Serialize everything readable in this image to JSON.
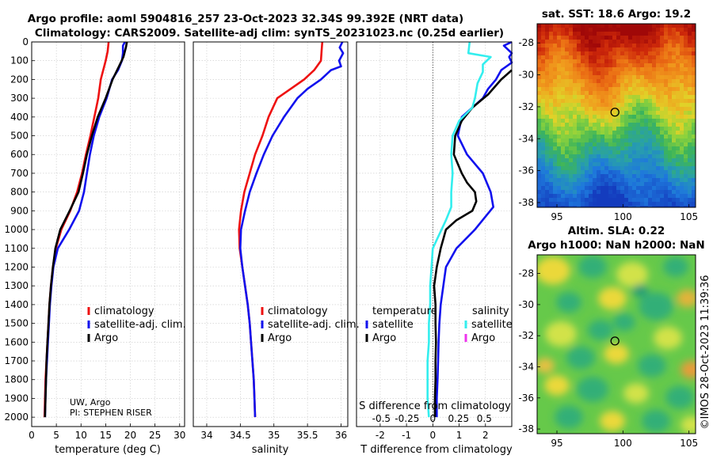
{
  "header": {
    "title_line1": "Argo profile: aoml 5904816_257 23-Oct-2023 32.34S 99.392E (NRT data)",
    "title_line2": "Climatology: CARS2009. Satellite-adj clim: synTS_20231023.nc (0.25d earlier)"
  },
  "credit": "©IMOS 28-Oct-2023 11:39:36",
  "colors": {
    "climatology": "#ee1111",
    "satellite_adj": "#1111ee",
    "argo": "#000000",
    "satellite_sal": "#33eeee",
    "argo_sal": "#ee33ee"
  },
  "chart_data": [
    {
      "type": "line",
      "id": "temperature",
      "xlabel": "temperature (deg C)",
      "ylabel": "",
      "xlim": [
        0,
        31
      ],
      "ylim": [
        0,
        2050
      ],
      "y_reversed": true,
      "xticks": [
        0,
        5,
        10,
        15,
        20,
        25,
        30
      ],
      "xtick_labels": [
        "0",
        "5",
        "10",
        "15",
        "20",
        "25",
        "30"
      ],
      "yticks": [
        0,
        100,
        200,
        300,
        400,
        500,
        600,
        700,
        800,
        900,
        1000,
        1100,
        1200,
        1300,
        1400,
        1500,
        1600,
        1700,
        1800,
        1900,
        2000
      ],
      "ytick_labels": [
        "0",
        "100",
        "200",
        "300",
        "400",
        "500",
        "600",
        "700",
        "800",
        "900",
        "1000",
        "1100",
        "1200",
        "1300",
        "1400",
        "1500",
        "1600",
        "1700",
        "1800",
        "1900",
        "2000"
      ],
      "grid": true,
      "legend": [
        "climatology",
        "satellite-adj. clim.",
        "Argo"
      ],
      "annotation_lines": [
        "UW, Argo",
        "PI: STEPHEN RISER"
      ],
      "series": [
        {
          "name": "climatology",
          "color_key": "climatology",
          "points": [
            [
              15.6,
              0
            ],
            [
              15.4,
              50
            ],
            [
              15,
              100
            ],
            [
              14.5,
              150
            ],
            [
              14,
              200
            ],
            [
              13.5,
              300
            ],
            [
              12.7,
              400
            ],
            [
              11.9,
              500
            ],
            [
              11,
              600
            ],
            [
              10.2,
              700
            ],
            [
              9.2,
              800
            ],
            [
              7.8,
              900
            ],
            [
              6,
              1000
            ],
            [
              4.9,
              1100
            ],
            [
              4.3,
              1200
            ],
            [
              3.9,
              1300
            ],
            [
              3.6,
              1400
            ],
            [
              3.4,
              1500
            ],
            [
              3.2,
              1600
            ],
            [
              3,
              1700
            ],
            [
              2.8,
              1800
            ],
            [
              2.7,
              1900
            ],
            [
              2.6,
              2000
            ]
          ]
        },
        {
          "name": "satellite-adj. clim.",
          "color_key": "satellite_adj",
          "points": [
            [
              18.9,
              0
            ],
            [
              18.5,
              20
            ],
            [
              18.5,
              60
            ],
            [
              18.3,
              100
            ],
            [
              17.5,
              150
            ],
            [
              16.3,
              200
            ],
            [
              15.2,
              300
            ],
            [
              13.7,
              400
            ],
            [
              12.6,
              500
            ],
            [
              11.8,
              600
            ],
            [
              11.2,
              700
            ],
            [
              10.6,
              800
            ],
            [
              9.6,
              900
            ],
            [
              7.6,
              1000
            ],
            [
              5.3,
              1100
            ],
            [
              4.4,
              1200
            ],
            [
              4,
              1300
            ],
            [
              3.7,
              1400
            ],
            [
              3.5,
              1500
            ],
            [
              3.3,
              1600
            ],
            [
              3.1,
              1700
            ],
            [
              2.9,
              1800
            ],
            [
              2.8,
              1900
            ],
            [
              2.7,
              2000
            ]
          ]
        },
        {
          "name": "Argo",
          "color_key": "argo",
          "points": [
            [
              19.3,
              0
            ],
            [
              19.1,
              30
            ],
            [
              18.6,
              80
            ],
            [
              17.7,
              130
            ],
            [
              16.4,
              200
            ],
            [
              15,
              300
            ],
            [
              13.4,
              400
            ],
            [
              12.2,
              500
            ],
            [
              11.2,
              600
            ],
            [
              10.4,
              700
            ],
            [
              9.5,
              800
            ],
            [
              7.7,
              900
            ],
            [
              5.8,
              1000
            ],
            [
              4.8,
              1100
            ],
            [
              4.3,
              1200
            ],
            [
              3.9,
              1300
            ],
            [
              3.6,
              1400
            ],
            [
              3.4,
              1500
            ],
            [
              3.2,
              1600
            ],
            [
              3,
              1700
            ],
            [
              2.9,
              1800
            ],
            [
              2.8,
              1900
            ],
            [
              2.7,
              2000
            ]
          ]
        }
      ]
    },
    {
      "type": "line",
      "id": "salinity",
      "xlabel": "salinity",
      "xlim": [
        33.8,
        36.1
      ],
      "ylim": [
        0,
        2050
      ],
      "y_reversed": true,
      "xticks": [
        34,
        34.5,
        35,
        35.5,
        36
      ],
      "xtick_labels": [
        "34",
        "34.5",
        "35",
        "35.5",
        "36"
      ],
      "grid": true,
      "legend": [
        "climatology",
        "satellite-adj. clim.",
        "Argo"
      ],
      "series": [
        {
          "name": "climatology",
          "color_key": "climatology",
          "points": [
            [
              35.72,
              0
            ],
            [
              35.71,
              50
            ],
            [
              35.7,
              100
            ],
            [
              35.6,
              150
            ],
            [
              35.45,
              200
            ],
            [
              35.25,
              250
            ],
            [
              35.05,
              300
            ],
            [
              34.92,
              400
            ],
            [
              34.83,
              500
            ],
            [
              34.72,
              600
            ],
            [
              34.64,
              700
            ],
            [
              34.56,
              800
            ],
            [
              34.51,
              900
            ],
            [
              34.48,
              1000
            ],
            [
              34.49,
              1100
            ],
            [
              34.53,
              1200
            ],
            [
              34.57,
              1300
            ],
            [
              34.61,
              1400
            ],
            [
              34.64,
              1500
            ],
            [
              34.66,
              1600
            ],
            [
              34.68,
              1700
            ],
            [
              34.7,
              1800
            ],
            [
              34.71,
              1900
            ],
            [
              34.72,
              2000
            ]
          ]
        },
        {
          "name": "satellite-adj. clim.",
          "color_key": "satellite_adj",
          "points": [
            [
              36.02,
              0
            ],
            [
              35.98,
              30
            ],
            [
              36.03,
              60
            ],
            [
              35.97,
              100
            ],
            [
              36,
              130
            ],
            [
              35.85,
              150
            ],
            [
              35.7,
              200
            ],
            [
              35.5,
              250
            ],
            [
              35.35,
              300
            ],
            [
              35.15,
              400
            ],
            [
              34.98,
              500
            ],
            [
              34.85,
              600
            ],
            [
              34.74,
              700
            ],
            [
              34.64,
              800
            ],
            [
              34.57,
              900
            ],
            [
              34.51,
              1000
            ],
            [
              34.5,
              1100
            ],
            [
              34.53,
              1200
            ],
            [
              34.57,
              1300
            ],
            [
              34.61,
              1400
            ],
            [
              34.64,
              1500
            ],
            [
              34.66,
              1600
            ],
            [
              34.68,
              1700
            ],
            [
              34.7,
              1800
            ],
            [
              34.71,
              1900
            ],
            [
              34.72,
              2000
            ]
          ]
        }
      ]
    },
    {
      "type": "line",
      "id": "difference",
      "xlabel": "T difference from climatology",
      "xlabel_secondary": "S difference from climatology",
      "xlim": [
        -2.9,
        3
      ],
      "ylim": [
        0,
        2050
      ],
      "y_reversed": true,
      "xticks": [
        -2,
        -1,
        0,
        1,
        2
      ],
      "xtick_labels": [
        "-2",
        "-1",
        "0",
        "1",
        "2"
      ],
      "sticks": [
        -0.5,
        -0.25,
        0,
        0.25,
        0.5
      ],
      "stick_labels": [
        "-0.5",
        "-0.25",
        "0",
        "0.25",
        "0.5"
      ],
      "grid": true,
      "legend_temperature": {
        "heading": "temperature",
        "items": [
          "satellite",
          "Argo"
        ]
      },
      "legend_salinity": {
        "heading": "salinity",
        "items": [
          "satellite",
          "Argo"
        ]
      },
      "series": [
        {
          "name": "temperature satellite",
          "color_key": "satellite_adj",
          "points": [
            [
              3,
              0
            ],
            [
              2.7,
              20
            ],
            [
              3,
              60
            ],
            [
              2.9,
              80
            ],
            [
              3,
              110
            ],
            [
              2.6,
              150
            ],
            [
              2.4,
              200
            ],
            [
              2.1,
              250
            ],
            [
              1.9,
              300
            ],
            [
              1.5,
              350
            ],
            [
              1.1,
              400
            ],
            [
              0.95,
              500
            ],
            [
              1.3,
              600
            ],
            [
              1.9,
              700
            ],
            [
              2.2,
              800
            ],
            [
              2.3,
              880
            ],
            [
              1.6,
              1000
            ],
            [
              0.9,
              1100
            ],
            [
              0.5,
              1200
            ],
            [
              0.4,
              1300
            ],
            [
              0.3,
              1400
            ],
            [
              0.25,
              1500
            ],
            [
              0.22,
              1600
            ],
            [
              0.2,
              1700
            ],
            [
              0.18,
              1800
            ],
            [
              0.15,
              1900
            ],
            [
              0.15,
              2000
            ]
          ]
        },
        {
          "name": "temperature Argo",
          "color_key": "argo",
          "points": [
            [
              3,
              150
            ],
            [
              2.6,
              200
            ],
            [
              2.1,
              280
            ],
            [
              1.5,
              350
            ],
            [
              1.1,
              420
            ],
            [
              0.85,
              500
            ],
            [
              0.8,
              600
            ],
            [
              1.1,
              700
            ],
            [
              1.3,
              750
            ],
            [
              1.6,
              800
            ],
            [
              1.65,
              850
            ],
            [
              1.5,
              900
            ],
            [
              0.9,
              950
            ],
            [
              0.5,
              1000
            ],
            [
              0.3,
              1100
            ],
            [
              0.15,
              1200
            ],
            [
              0.05,
              1300
            ],
            [
              0.1,
              1400
            ],
            [
              0.1,
              1500
            ],
            [
              0.12,
              1600
            ],
            [
              0.1,
              1700
            ],
            [
              0.1,
              1800
            ],
            [
              0.08,
              1900
            ],
            [
              0.08,
              2000
            ]
          ]
        },
        {
          "name": "salinity satellite",
          "color_key": "satellite_sal",
          "points": [
            [
              1.4,
              0
            ],
            [
              1.35,
              60
            ],
            [
              2.2,
              80
            ],
            [
              1.9,
              120
            ],
            [
              1.9,
              160
            ],
            [
              1.7,
              220
            ],
            [
              1.6,
              300
            ],
            [
              1.5,
              350
            ],
            [
              1,
              420
            ],
            [
              0.75,
              500
            ],
            [
              0.7,
              600
            ],
            [
              0.75,
              700
            ],
            [
              0.7,
              800
            ],
            [
              0.7,
              880
            ],
            [
              0.5,
              950
            ],
            [
              0,
              1100
            ],
            [
              -0.05,
              1200
            ],
            [
              -0.1,
              1300
            ],
            [
              -0.1,
              1400
            ],
            [
              -0.15,
              1500
            ],
            [
              -0.15,
              1600
            ],
            [
              -0.2,
              1700
            ],
            [
              -0.2,
              1800
            ],
            [
              -0.2,
              1900
            ],
            [
              -0.15,
              2000
            ]
          ]
        }
      ]
    },
    {
      "type": "heatmap",
      "id": "sst_map",
      "title": "sat. SST: 18.6 Argo: 19.2",
      "xlim": [
        93.5,
        105.5
      ],
      "ylim": [
        -38.3,
        -26.8
      ],
      "xticks": [
        95,
        100,
        105
      ],
      "xtick_labels": [
        "95",
        "100",
        "105"
      ],
      "yticks": [
        -28,
        -30,
        -32,
        -34,
        -36,
        -38
      ],
      "ytick_labels": [
        "-28",
        "-30",
        "-32",
        "-34",
        "-36",
        "-38"
      ],
      "marker": {
        "lon": 99.392,
        "lat": -32.34
      }
    },
    {
      "type": "heatmap",
      "id": "sla_map",
      "title_line1": "Altim. SLA: 0.22",
      "title_line2": "Argo h1000: NaN h2000: NaN",
      "xlim": [
        93.5,
        105.5
      ],
      "ylim": [
        -38.3,
        -26.8
      ],
      "xticks": [
        95,
        100,
        105
      ],
      "xtick_labels": [
        "95",
        "100",
        "105"
      ],
      "yticks": [
        -28,
        -30,
        -32,
        -34,
        -36,
        -38
      ],
      "ytick_labels": [
        "-28",
        "-30",
        "-32",
        "-34",
        "-36",
        "-38"
      ],
      "marker": {
        "lon": 99.392,
        "lat": -32.34
      }
    }
  ]
}
